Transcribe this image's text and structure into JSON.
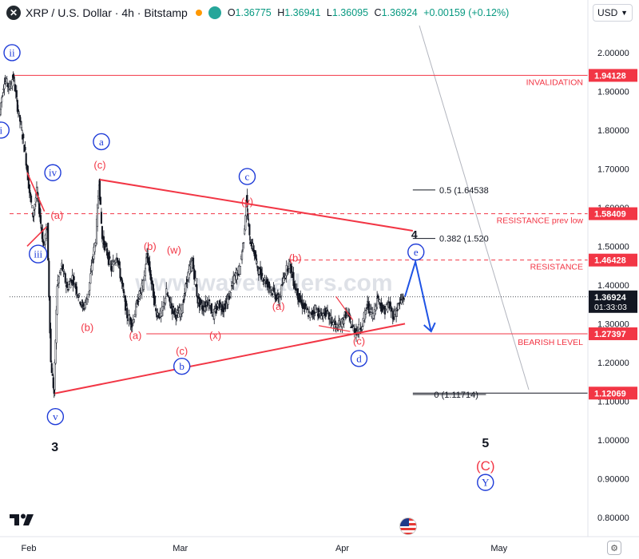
{
  "header": {
    "symbol_title": "XRP / U.S. Dollar · 4h · Bitstamp",
    "symbol_glyph": "✕",
    "ohlc": {
      "o_label": "O",
      "o": "1.36775",
      "h_label": "H",
      "h": "1.36941",
      "l_label": "L",
      "l": "1.36095",
      "c_label": "C",
      "c": "1.36924",
      "change": "+0.00159 (+0.12%)"
    },
    "currency": "USD"
  },
  "watermark": "www.wavetraders.com",
  "chart_data": {
    "type": "candlestick",
    "y_range": [
      0.75,
      2.07
    ],
    "y_ticks": [
      "2.00000",
      "1.90000",
      "1.80000",
      "1.70000",
      "1.60000",
      "1.50000",
      "1.40000",
      "1.30000",
      "1.20000",
      "1.10000",
      "1.00000",
      "0.90000",
      "0.80000"
    ],
    "x_ticks": [
      {
        "label": "Feb",
        "t": 0
      },
      {
        "label": "Mar",
        "t": 29
      },
      {
        "label": "Apr",
        "t": 60
      },
      {
        "label": "May",
        "t": 90
      }
    ],
    "x_range_days": [
      -5.5,
      107
    ],
    "price_path": [
      [
        -5.5,
        1.84
      ],
      [
        -4.5,
        1.93
      ],
      [
        -3.5,
        1.91
      ],
      [
        -2.8,
        1.94
      ],
      [
        -2,
        1.86
      ],
      [
        -1.2,
        1.8
      ],
      [
        -0.5,
        1.74
      ],
      [
        0.3,
        1.64
      ],
      [
        1,
        1.58
      ],
      [
        1.7,
        1.64
      ],
      [
        2.3,
        1.58
      ],
      [
        3,
        1.5
      ],
      [
        3.7,
        1.55
      ],
      [
        4.4,
        1.2
      ],
      [
        5,
        1.12
      ],
      [
        5.6,
        1.4
      ],
      [
        6.5,
        1.45
      ],
      [
        7.5,
        1.39
      ],
      [
        8.5,
        1.42
      ],
      [
        9.5,
        1.38
      ],
      [
        10.5,
        1.34
      ],
      [
        11.5,
        1.37
      ],
      [
        12.3,
        1.46
      ],
      [
        13,
        1.52
      ],
      [
        13.6,
        1.67
      ],
      [
        14.2,
        1.52
      ],
      [
        15,
        1.49
      ],
      [
        16,
        1.44
      ],
      [
        17,
        1.48
      ],
      [
        18,
        1.4
      ],
      [
        19,
        1.32
      ],
      [
        20,
        1.3
      ],
      [
        21,
        1.36
      ],
      [
        22,
        1.4
      ],
      [
        22.8,
        1.48
      ],
      [
        23.5,
        1.42
      ],
      [
        24.5,
        1.33
      ],
      [
        25.5,
        1.32
      ],
      [
        26.5,
        1.38
      ],
      [
        27.5,
        1.34
      ],
      [
        28.5,
        1.32
      ],
      [
        29.5,
        1.34
      ],
      [
        30.5,
        1.42
      ],
      [
        31.5,
        1.46
      ],
      [
        32.5,
        1.36
      ],
      [
        33.5,
        1.34
      ],
      [
        34.5,
        1.36
      ],
      [
        35.5,
        1.32
      ],
      [
        36.5,
        1.35
      ],
      [
        37.5,
        1.34
      ],
      [
        38.5,
        1.37
      ],
      [
        39.5,
        1.42
      ],
      [
        40.5,
        1.44
      ],
      [
        41.3,
        1.52
      ],
      [
        41.8,
        1.62
      ],
      [
        42.4,
        1.52
      ],
      [
        43.2,
        1.49
      ],
      [
        44,
        1.44
      ],
      [
        45,
        1.42
      ],
      [
        46,
        1.4
      ],
      [
        47,
        1.38
      ],
      [
        48,
        1.36
      ],
      [
        49,
        1.42
      ],
      [
        50,
        1.46
      ],
      [
        51,
        1.4
      ],
      [
        52,
        1.36
      ],
      [
        53,
        1.34
      ],
      [
        54,
        1.32
      ],
      [
        55,
        1.34
      ],
      [
        56,
        1.32
      ],
      [
        57,
        1.33
      ],
      [
        58,
        1.31
      ],
      [
        59,
        1.29
      ],
      [
        60,
        1.3
      ],
      [
        61,
        1.33
      ],
      [
        62,
        1.29
      ],
      [
        63,
        1.28
      ],
      [
        64,
        1.3
      ],
      [
        65,
        1.35
      ],
      [
        66,
        1.32
      ],
      [
        67,
        1.37
      ],
      [
        68,
        1.33
      ],
      [
        69,
        1.35
      ],
      [
        70,
        1.32
      ],
      [
        71,
        1.35
      ],
      [
        72,
        1.37
      ]
    ],
    "price_labels": [
      {
        "label": "1.94128",
        "value": 1.94128,
        "color": "#f23645"
      },
      {
        "label": "1.58409",
        "value": 1.58409,
        "color": "#f23645"
      },
      {
        "label": "1.46428",
        "value": 1.46428,
        "color": "#f23645"
      },
      {
        "label": "1.36924",
        "sub": "01:33:03",
        "value": 1.36924,
        "color": "#131722"
      },
      {
        "label": "1.27397",
        "value": 1.27397,
        "color": "#f23645"
      },
      {
        "label": "1.12069",
        "value": 1.12069,
        "color": "#f23645"
      }
    ],
    "levels": [
      {
        "name": "INVALIDATION",
        "value": 1.94128,
        "style": "solid"
      },
      {
        "name": "RESISTANCE prev low",
        "value": 1.58409,
        "style": "dashed"
      },
      {
        "name": "RESISTANCE",
        "value": 1.46428,
        "style": "dashed"
      },
      {
        "name": "BEARISH LEVEL",
        "value": 1.27397,
        "style": "solid"
      },
      {
        "name": "",
        "value": 1.12069,
        "style": "solid"
      }
    ],
    "fib_levels": [
      {
        "label": "0.5 (1.64538",
        "value": 1.64538
      },
      {
        "label": "0.382 (1.520",
        "value": 1.52
      },
      {
        "label": "0 (1.11714)",
        "value": 1.11714
      }
    ],
    "triangle_lines": [
      {
        "from": [
          13.6,
          1.672
        ],
        "to": [
          73.5,
          1.54
        ]
      },
      {
        "from": [
          5,
          1.12
        ],
        "to": [
          72,
          1.3
        ]
      }
    ],
    "projection": [
      [
        72,
        1.37
      ],
      [
        74,
        1.46
      ],
      [
        77,
        1.28
      ]
    ],
    "wave_labels": [
      {
        "text": "ii",
        "t": -3.2,
        "v": 2.0,
        "style": "circle-blue"
      },
      {
        "text": "i",
        "t": -5.3,
        "v": 1.8,
        "style": "circle-blue"
      },
      {
        "text": "iv",
        "t": 4.6,
        "v": 1.69,
        "style": "circle-blue"
      },
      {
        "text": "iii",
        "t": 1.8,
        "v": 1.48,
        "style": "circle-blue"
      },
      {
        "text": "v",
        "t": 5.1,
        "v": 1.06,
        "style": "circle-blue"
      },
      {
        "text": "a",
        "t": 13.9,
        "v": 1.77,
        "style": "circle-blue"
      },
      {
        "text": "b",
        "t": 29.3,
        "v": 1.19,
        "style": "circle-blue"
      },
      {
        "text": "c",
        "t": 41.8,
        "v": 1.68,
        "style": "circle-blue"
      },
      {
        "text": "d",
        "t": 63.2,
        "v": 1.21,
        "style": "circle-blue"
      },
      {
        "text": "e",
        "t": 74.1,
        "v": 1.485,
        "style": "circle-blue"
      },
      {
        "text": "Y",
        "t": 87.4,
        "v": 0.89,
        "style": "circle-blue"
      },
      {
        "text": "(a)",
        "t": 5.4,
        "v": 1.58,
        "style": "red"
      },
      {
        "text": "(c)",
        "t": 13.6,
        "v": 1.71,
        "style": "red"
      },
      {
        "text": "(b)",
        "t": 11.2,
        "v": 1.29,
        "style": "red"
      },
      {
        "text": "(a)",
        "t": 20.4,
        "v": 1.27,
        "style": "red"
      },
      {
        "text": "(b)",
        "t": 23.2,
        "v": 1.5,
        "style": "red"
      },
      {
        "text": "(w)",
        "t": 27.8,
        "v": 1.49,
        "style": "red"
      },
      {
        "text": "(c)",
        "t": 29.3,
        "v": 1.23,
        "style": "red"
      },
      {
        "text": "(x)",
        "t": 35.7,
        "v": 1.27,
        "style": "red"
      },
      {
        "text": "(y)",
        "t": 41.8,
        "v": 1.615,
        "style": "red"
      },
      {
        "text": "(a)",
        "t": 47.8,
        "v": 1.345,
        "style": "red"
      },
      {
        "text": "(b)",
        "t": 51.0,
        "v": 1.47,
        "style": "red"
      },
      {
        "text": "(c)",
        "t": 63.2,
        "v": 1.255,
        "style": "red"
      },
      {
        "text": "4",
        "t": 73.8,
        "v": 1.53,
        "style": "black"
      },
      {
        "text": "3",
        "t": 5.0,
        "v": 0.98,
        "style": "black-big"
      },
      {
        "text": "5",
        "t": 87.4,
        "v": 0.99,
        "style": "black-big"
      },
      {
        "text": "(C)",
        "t": 87.4,
        "v": 0.93,
        "style": "red-big"
      }
    ]
  }
}
